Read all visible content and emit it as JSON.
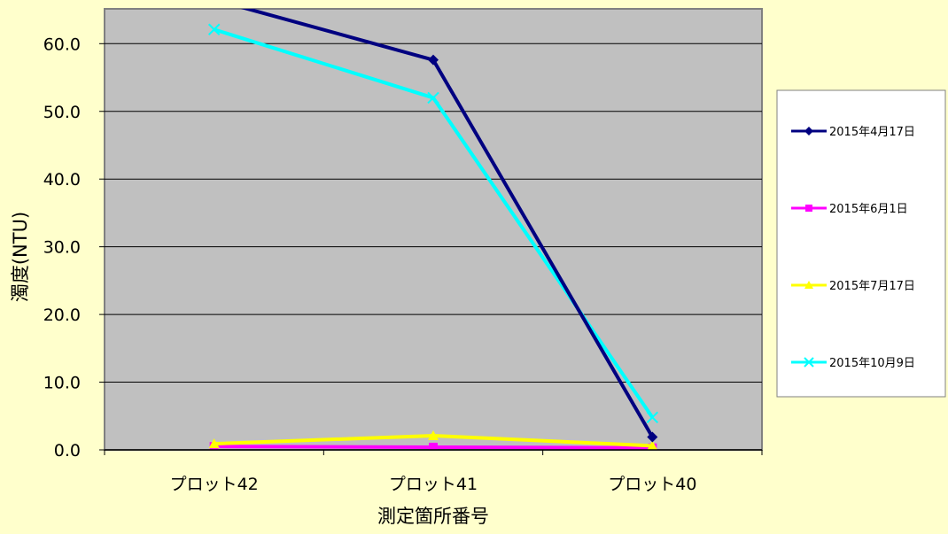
{
  "chart_data": {
    "type": "line",
    "title": "",
    "xlabel": "測定箇所番号",
    "ylabel": "濁度(NTU)",
    "categories": [
      "プロット42",
      "プロット41",
      "プロット40"
    ],
    "ylim": [
      0,
      65
    ],
    "yticks": [
      "0.0",
      "10.0",
      "20.0",
      "30.0",
      "40.0",
      "50.0",
      "60.0"
    ],
    "grid": true,
    "legend_position": "right",
    "plot_background": "#c0c0c0",
    "page_background": "#ffffcc",
    "series": [
      {
        "name": "2015年4月17日",
        "values": [
          66.5,
          57.6,
          1.9
        ],
        "color": "#000080",
        "marker": "diamond"
      },
      {
        "name": "2015年6月1日",
        "values": [
          0.5,
          0.4,
          0.3
        ],
        "color": "#ff00ff",
        "marker": "square"
      },
      {
        "name": "2015年7月17日",
        "values": [
          0.9,
          2.1,
          0.6
        ],
        "color": "#ffff00",
        "marker": "triangle"
      },
      {
        "name": "2015年10月9日",
        "values": [
          62.1,
          52.0,
          4.8
        ],
        "color": "#00ffff",
        "marker": "x"
      }
    ]
  }
}
